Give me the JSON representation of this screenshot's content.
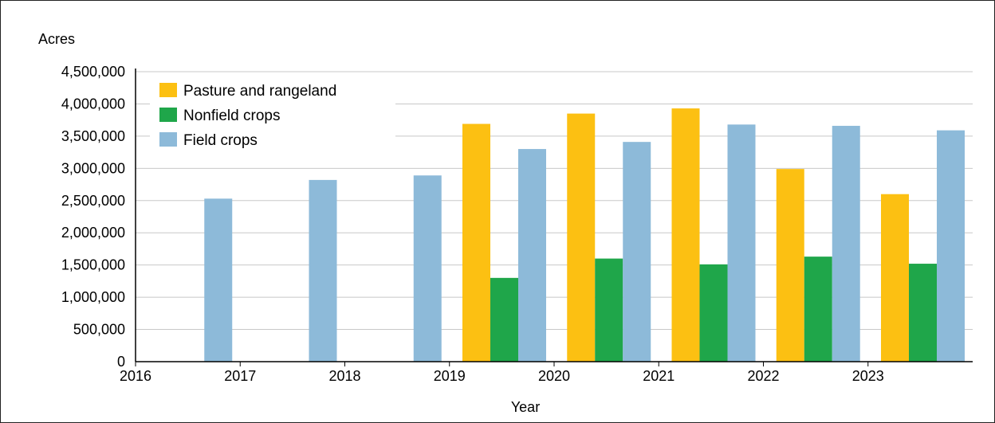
{
  "chart_data": {
    "type": "bar",
    "ylabel": "Acres",
    "xlabel": "Year",
    "ylim": [
      0,
      4500000
    ],
    "y_ticks": [
      0,
      500000,
      1000000,
      1500000,
      2000000,
      2500000,
      3000000,
      3500000,
      4000000,
      4500000
    ],
    "y_tick_labels": [
      "0",
      "500,000",
      "1,000,000",
      "1,500,000",
      "2,000,000",
      "2,500,000",
      "3,000,000",
      "3,500,000",
      "4,000,000",
      "4,500,000"
    ],
    "categories": [
      "2016",
      "2017",
      "2018",
      "2019",
      "2020",
      "2021",
      "2022",
      "2023"
    ],
    "grid": true,
    "legend_position": "top-left",
    "series": [
      {
        "name": "Pasture and rangeland",
        "color": "#FCC012",
        "values": [
          null,
          null,
          null,
          3690000,
          3850000,
          3930000,
          2990000,
          2600000
        ]
      },
      {
        "name": "Nonfield crops",
        "color": "#1FA64A",
        "values": [
          null,
          null,
          null,
          1300000,
          1600000,
          1510000,
          1630000,
          1520000
        ]
      },
      {
        "name": "Field crops",
        "color": "#8DBAD9",
        "values": [
          2530000,
          2820000,
          2890000,
          3300000,
          3410000,
          3680000,
          3660000,
          3590000
        ]
      }
    ]
  }
}
